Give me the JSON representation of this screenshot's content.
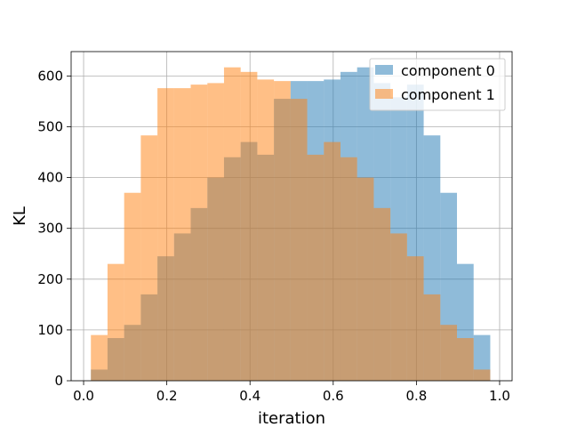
{
  "chart_data": {
    "type": "bar",
    "title": "",
    "xlabel": "iteration",
    "ylabel": "KL",
    "xlim": [
      -0.03,
      1.03
    ],
    "ylim": [
      0,
      648
    ],
    "x_ticks": [
      0.0,
      0.2,
      0.4,
      0.6,
      0.8,
      1.0
    ],
    "x_tick_labels": [
      "0.0",
      "0.2",
      "0.4",
      "0.6",
      "0.8",
      "1.0"
    ],
    "y_ticks": [
      0,
      100,
      200,
      300,
      400,
      500,
      600
    ],
    "y_tick_labels": [
      "0",
      "100",
      "200",
      "300",
      "400",
      "500",
      "600"
    ],
    "grid": true,
    "legend_position": "top-right",
    "bin_edges": [
      0.0175,
      0.0575,
      0.0975,
      0.1375,
      0.1775,
      0.2175,
      0.2575,
      0.2975,
      0.3375,
      0.3775,
      0.4175,
      0.4575,
      0.4975,
      0.5375,
      0.5775,
      0.6175,
      0.6575,
      0.6975,
      0.7375,
      0.7775,
      0.8175,
      0.8575,
      0.8975,
      0.9375,
      0.9775
    ],
    "series": [
      {
        "name": "component 0",
        "color": "#1f77b4",
        "opacity": 0.5,
        "values": [
          22,
          84,
          110,
          170,
          245,
          290,
          340,
          400,
          440,
          470,
          445,
          555,
          590,
          590,
          593,
          608,
          617,
          586,
          558,
          583,
          483,
          370,
          230,
          90
        ]
      },
      {
        "name": "component 1",
        "color": "#ff7f0e",
        "opacity": 0.5,
        "values": [
          90,
          230,
          370,
          483,
          576,
          576,
          583,
          586,
          617,
          608,
          593,
          590,
          555,
          445,
          470,
          440,
          400,
          340,
          290,
          245,
          170,
          110,
          84,
          22
        ]
      }
    ]
  }
}
